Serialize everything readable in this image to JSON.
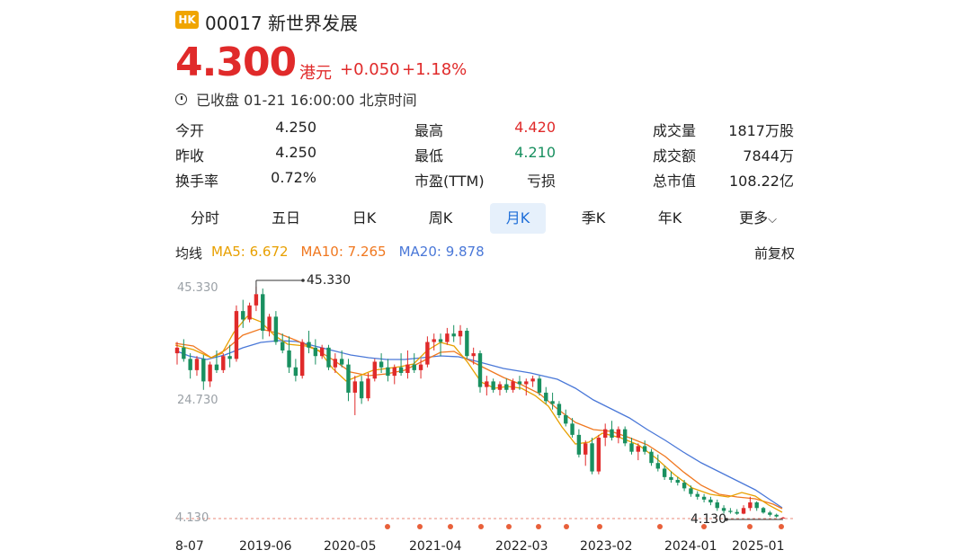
{
  "header": {
    "market_badge": "HK",
    "stock_name": "00017 新世界发展",
    "price": "4.300",
    "price_unit": "港元",
    "change": "+0.050",
    "change_pct": "+1.18%",
    "status": "已收盘 01-21 16:00:00 北京时间"
  },
  "quote": {
    "col1": [
      {
        "label": "今开",
        "value": "4.250"
      },
      {
        "label": "昨收",
        "value": "4.250"
      },
      {
        "label": "换手率",
        "value": "0.72%"
      }
    ],
    "col2": [
      {
        "label": "最高",
        "value": "4.420"
      },
      {
        "label": "最低",
        "value": "4.210"
      },
      {
        "label": "市盈(TTM)",
        "value": "亏损"
      }
    ],
    "col3": [
      {
        "label": "成交量",
        "value": "1817万股"
      },
      {
        "label": "成交额",
        "value": "7844万"
      },
      {
        "label": "总市值",
        "value": "108.22亿"
      }
    ]
  },
  "tabs": [
    {
      "label": "分时"
    },
    {
      "label": "五日"
    },
    {
      "label": "日K"
    },
    {
      "label": "周K"
    },
    {
      "label": "月K",
      "active": true
    },
    {
      "label": "季K"
    },
    {
      "label": "年K"
    },
    {
      "label": "更多"
    }
  ],
  "ma": {
    "label": "均线",
    "ma5": "MA5: 6.672",
    "ma10": "MA10: 7.265",
    "ma20": "MA20: 9.878",
    "adjust": "前复权"
  },
  "colors": {
    "up": "#e02a2a",
    "down": "#199060",
    "ma5": "#e8a000",
    "ma10": "#f07820",
    "ma20": "#4a78d8",
    "active_tab_bg": "#e6f0fb"
  },
  "chart_data": {
    "type": "candlestick",
    "y_tick_labels": [
      "45.330",
      "24.730",
      "4.130"
    ],
    "x_tick_labels": [
      "8-07",
      "2019-06",
      "2020-05",
      "2021-04",
      "2022-03",
      "2023-02",
      "2024-01",
      "2025-01"
    ],
    "max_annotation": "45.330",
    "min_annotation": "4.130",
    "ylim": [
      4.13,
      45.33
    ],
    "candles": [
      [
        33.5,
        35.5,
        31.5,
        34.5
      ],
      [
        34.5,
        36.0,
        32.0,
        32.5
      ],
      [
        32.5,
        33.5,
        29.0,
        30.5
      ],
      [
        30.5,
        33.0,
        29.5,
        32.5
      ],
      [
        32.5,
        33.2,
        27.0,
        28.5
      ],
      [
        28.5,
        32.0,
        27.5,
        31.5
      ],
      [
        31.5,
        34.0,
        30.0,
        30.5
      ],
      [
        30.5,
        33.5,
        30.0,
        33.0
      ],
      [
        33.0,
        35.0,
        31.0,
        32.5
      ],
      [
        32.5,
        42.0,
        32.0,
        41.0
      ],
      [
        41.0,
        43.0,
        38.0,
        39.5
      ],
      [
        39.5,
        42.5,
        39.0,
        42.0
      ],
      [
        42.0,
        45.33,
        41.0,
        44.0
      ],
      [
        44.0,
        45.0,
        36.0,
        37.5
      ],
      [
        37.5,
        40.5,
        36.5,
        40.0
      ],
      [
        40.0,
        41.0,
        35.0,
        35.5
      ],
      [
        35.5,
        37.0,
        33.5,
        34.0
      ],
      [
        34.0,
        36.5,
        30.0,
        31.0
      ],
      [
        31.0,
        32.5,
        28.5,
        29.5
      ],
      [
        29.5,
        36.0,
        29.0,
        35.5
      ],
      [
        35.5,
        37.5,
        33.5,
        34.5
      ],
      [
        34.5,
        36.0,
        31.5,
        33.0
      ],
      [
        33.0,
        35.0,
        32.5,
        34.5
      ],
      [
        34.5,
        35.0,
        30.5,
        31.0
      ],
      [
        31.0,
        33.5,
        30.0,
        32.5
      ],
      [
        32.5,
        34.0,
        31.0,
        31.5
      ],
      [
        31.5,
        32.5,
        25.0,
        26.5
      ],
      [
        26.5,
        29.5,
        22.5,
        28.5
      ],
      [
        28.5,
        29.5,
        24.5,
        25.5
      ],
      [
        25.5,
        30.0,
        25.0,
        29.0
      ],
      [
        29.0,
        32.5,
        28.5,
        32.0
      ],
      [
        32.0,
        33.5,
        30.0,
        31.0
      ],
      [
        31.0,
        32.5,
        28.5,
        29.5
      ],
      [
        29.5,
        31.5,
        28.0,
        31.0
      ],
      [
        31.0,
        33.5,
        29.5,
        30.0
      ],
      [
        30.0,
        34.0,
        29.0,
        31.5
      ],
      [
        31.5,
        33.5,
        30.0,
        30.5
      ],
      [
        30.5,
        32.5,
        29.0,
        31.5
      ],
      [
        31.5,
        36.5,
        31.0,
        35.5
      ],
      [
        35.5,
        37.0,
        34.0,
        36.0
      ],
      [
        36.0,
        37.0,
        33.0,
        35.5
      ],
      [
        35.5,
        38.0,
        35.0,
        37.0
      ],
      [
        37.0,
        38.5,
        35.5,
        36.5
      ],
      [
        36.5,
        38.5,
        35.0,
        37.5
      ],
      [
        37.5,
        38.0,
        32.5,
        33.0
      ],
      [
        33.0,
        34.5,
        31.5,
        33.5
      ],
      [
        33.5,
        34.0,
        26.5,
        27.5
      ],
      [
        27.5,
        29.5,
        26.0,
        28.5
      ],
      [
        28.5,
        29.0,
        26.5,
        27.0
      ],
      [
        27.0,
        28.5,
        26.0,
        28.0
      ],
      [
        28.0,
        29.0,
        26.5,
        27.0
      ],
      [
        27.0,
        29.0,
        26.5,
        28.5
      ],
      [
        28.5,
        29.5,
        27.0,
        28.0
      ],
      [
        28.0,
        29.0,
        26.0,
        28.5
      ],
      [
        28.5,
        29.5,
        27.5,
        29.0
      ],
      [
        29.0,
        29.5,
        26.0,
        26.5
      ],
      [
        26.5,
        27.5,
        24.5,
        25.0
      ],
      [
        25.0,
        26.5,
        23.5,
        24.5
      ],
      [
        24.5,
        25.0,
        22.0,
        22.5
      ],
      [
        22.5,
        23.5,
        20.5,
        21.0
      ],
      [
        21.0,
        22.0,
        18.5,
        19.0
      ],
      [
        19.0,
        20.0,
        15.0,
        15.5
      ],
      [
        15.5,
        18.0,
        13.5,
        17.5
      ],
      [
        17.5,
        18.5,
        12.0,
        12.5
      ],
      [
        12.5,
        19.0,
        12.0,
        18.5
      ],
      [
        18.5,
        21.0,
        17.0,
        20.0
      ],
      [
        20.0,
        21.5,
        18.0,
        18.5
      ],
      [
        18.5,
        20.5,
        17.5,
        20.0
      ],
      [
        20.0,
        20.5,
        17.0,
        17.5
      ],
      [
        17.5,
        18.5,
        15.5,
        16.0
      ],
      [
        16.0,
        17.5,
        14.5,
        17.0
      ],
      [
        17.0,
        18.0,
        15.5,
        16.0
      ],
      [
        16.0,
        16.5,
        13.5,
        14.0
      ],
      [
        14.0,
        15.5,
        12.5,
        13.0
      ],
      [
        13.0,
        13.5,
        11.0,
        11.5
      ],
      [
        11.5,
        12.5,
        10.5,
        11.0
      ],
      [
        11.0,
        11.5,
        10.0,
        10.5
      ],
      [
        10.5,
        11.0,
        9.0,
        9.5
      ],
      [
        9.5,
        10.0,
        8.0,
        8.5
      ],
      [
        8.5,
        9.0,
        7.5,
        8.0
      ],
      [
        8.0,
        8.5,
        7.0,
        7.5
      ],
      [
        7.5,
        8.0,
        6.5,
        7.0
      ],
      [
        7.0,
        7.5,
        5.5,
        6.0
      ],
      [
        6.0,
        6.5,
        5.0,
        5.5
      ],
      [
        5.5,
        6.0,
        5.0,
        5.3
      ],
      [
        5.3,
        5.8,
        4.8,
        5.0
      ],
      [
        5.0,
        6.5,
        4.9,
        6.0
      ],
      [
        6.0,
        8.0,
        5.5,
        7.0
      ],
      [
        7.0,
        7.2,
        5.5,
        6.0
      ],
      [
        6.0,
        6.2,
        5.0,
        5.2
      ],
      [
        5.2,
        5.5,
        4.5,
        4.8
      ],
      [
        4.8,
        5.0,
        4.3,
        4.5
      ],
      [
        4.25,
        4.42,
        4.13,
        4.3
      ]
    ],
    "ma5_pts": [
      [
        195,
        384
      ],
      [
        215,
        389
      ],
      [
        235,
        398
      ],
      [
        247,
        393
      ],
      [
        260,
        370
      ],
      [
        275,
        352
      ],
      [
        290,
        358
      ],
      [
        305,
        373
      ],
      [
        320,
        383
      ],
      [
        340,
        385
      ],
      [
        355,
        390
      ],
      [
        370,
        410
      ],
      [
        385,
        424
      ],
      [
        400,
        418
      ],
      [
        415,
        412
      ],
      [
        430,
        410
      ],
      [
        445,
        408
      ],
      [
        460,
        405
      ],
      [
        475,
        390
      ],
      [
        490,
        381
      ],
      [
        505,
        385
      ],
      [
        520,
        403
      ],
      [
        535,
        425
      ],
      [
        550,
        432
      ],
      [
        565,
        430
      ],
      [
        580,
        432
      ],
      [
        595,
        440
      ],
      [
        610,
        452
      ],
      [
        625,
        475
      ],
      [
        640,
        494
      ],
      [
        655,
        492
      ],
      [
        670,
        482
      ],
      [
        690,
        487
      ],
      [
        710,
        495
      ],
      [
        730,
        510
      ],
      [
        750,
        528
      ],
      [
        770,
        543
      ],
      [
        790,
        550
      ],
      [
        810,
        553
      ],
      [
        825,
        548
      ],
      [
        840,
        552
      ],
      [
        855,
        562
      ],
      [
        870,
        570
      ]
    ],
    "ma10_pts": [
      [
        195,
        382
      ],
      [
        215,
        385
      ],
      [
        235,
        398
      ],
      [
        250,
        390
      ],
      [
        270,
        373
      ],
      [
        290,
        366
      ],
      [
        310,
        371
      ],
      [
        330,
        379
      ],
      [
        350,
        388
      ],
      [
        370,
        400
      ],
      [
        390,
        414
      ],
      [
        410,
        418
      ],
      [
        430,
        416
      ],
      [
        450,
        412
      ],
      [
        470,
        402
      ],
      [
        490,
        392
      ],
      [
        505,
        391
      ],
      [
        520,
        400
      ],
      [
        540,
        410
      ],
      [
        560,
        420
      ],
      [
        580,
        428
      ],
      [
        600,
        438
      ],
      [
        620,
        455
      ],
      [
        640,
        470
      ],
      [
        660,
        478
      ],
      [
        680,
        480
      ],
      [
        700,
        487
      ],
      [
        720,
        495
      ],
      [
        740,
        508
      ],
      [
        760,
        525
      ],
      [
        780,
        540
      ],
      [
        800,
        550
      ],
      [
        820,
        553
      ],
      [
        840,
        555
      ],
      [
        860,
        561
      ],
      [
        870,
        566
      ]
    ],
    "ma20_pts": [
      [
        195,
        390
      ],
      [
        210,
        396
      ],
      [
        230,
        400
      ],
      [
        250,
        395
      ],
      [
        270,
        387
      ],
      [
        290,
        381
      ],
      [
        310,
        379
      ],
      [
        330,
        380
      ],
      [
        350,
        385
      ],
      [
        370,
        390
      ],
      [
        390,
        395
      ],
      [
        410,
        398
      ],
      [
        430,
        400
      ],
      [
        450,
        400
      ],
      [
        470,
        398
      ],
      [
        490,
        396
      ],
      [
        510,
        397
      ],
      [
        530,
        402
      ],
      [
        560,
        410
      ],
      [
        590,
        415
      ],
      [
        620,
        422
      ],
      [
        640,
        432
      ],
      [
        660,
        445
      ],
      [
        680,
        455
      ],
      [
        700,
        465
      ],
      [
        720,
        478
      ],
      [
        740,
        490
      ],
      [
        760,
        503
      ],
      [
        780,
        515
      ],
      [
        800,
        525
      ],
      [
        820,
        535
      ],
      [
        840,
        545
      ],
      [
        855,
        555
      ],
      [
        870,
        565
      ]
    ],
    "event_dot_x": [
      431,
      467,
      501,
      535,
      566,
      599,
      630,
      667,
      734,
      783,
      834,
      869
    ]
  }
}
